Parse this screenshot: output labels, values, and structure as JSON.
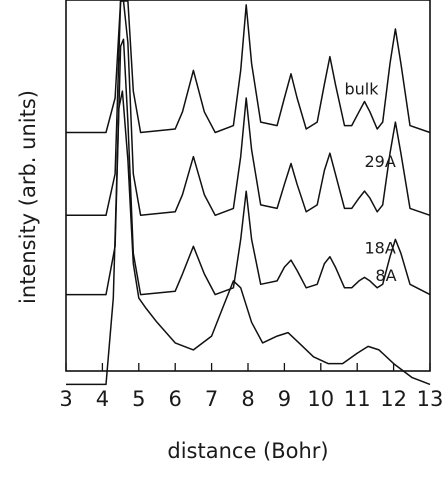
{
  "chart_data": {
    "type": "line",
    "title": "",
    "xlabel": "distance (Bohr)",
    "ylabel": "intensity (arb. units)",
    "xlim": [
      3,
      13
    ],
    "x_ticks": [
      "3",
      "4",
      "5",
      "6",
      "7",
      "8",
      "9",
      "10",
      "11",
      "12",
      "13"
    ],
    "y_ticks": [],
    "grid": false,
    "legend": "none",
    "series_offsets": {
      "bulk": 0.5,
      "29A": 0.26,
      "18A": 0.03,
      "8A": -0.23
    },
    "series": [
      {
        "name": "bulk",
        "label_position": [
          10.65,
          0.11
        ],
        "points": [
          [
            3,
            0
          ],
          [
            4.1,
            0
          ],
          [
            4.35,
            0.1
          ],
          [
            4.5,
            0.62
          ],
          [
            4.58,
            0.7
          ],
          [
            4.7,
            0.5
          ],
          [
            4.85,
            0.12
          ],
          [
            5.05,
            0
          ],
          [
            6.0,
            0.01
          ],
          [
            6.2,
            0.06
          ],
          [
            6.5,
            0.18
          ],
          [
            6.8,
            0.06
          ],
          [
            7.1,
            0
          ],
          [
            7.6,
            0.02
          ],
          [
            7.8,
            0.18
          ],
          [
            7.95,
            0.37
          ],
          [
            8.1,
            0.2
          ],
          [
            8.35,
            0.03
          ],
          [
            8.8,
            0.02
          ],
          [
            9.0,
            0.1
          ],
          [
            9.18,
            0.17
          ],
          [
            9.35,
            0.1
          ],
          [
            9.6,
            0.01
          ],
          [
            9.9,
            0.03
          ],
          [
            10.1,
            0.14
          ],
          [
            10.25,
            0.22
          ],
          [
            10.4,
            0.14
          ],
          [
            10.65,
            0.02
          ],
          [
            10.85,
            0.02
          ],
          [
            11.05,
            0.06
          ],
          [
            11.2,
            0.09
          ],
          [
            11.35,
            0.06
          ],
          [
            11.55,
            0.01
          ],
          [
            11.7,
            0.03
          ],
          [
            11.9,
            0.2
          ],
          [
            12.05,
            0.3
          ],
          [
            12.2,
            0.2
          ],
          [
            12.45,
            0.02
          ],
          [
            13,
            0
          ]
        ]
      },
      {
        "name": "29A",
        "label_position": [
          11.2,
          0.14
        ],
        "points": [
          [
            3,
            0
          ],
          [
            4.1,
            0
          ],
          [
            4.35,
            0.12
          ],
          [
            4.5,
            0.66
          ],
          [
            4.58,
            0.7
          ],
          [
            4.7,
            0.5
          ],
          [
            4.85,
            0.12
          ],
          [
            5.05,
            0
          ],
          [
            6.0,
            0.01
          ],
          [
            6.2,
            0.06
          ],
          [
            6.5,
            0.17
          ],
          [
            6.8,
            0.06
          ],
          [
            7.1,
            0
          ],
          [
            7.6,
            0.02
          ],
          [
            7.8,
            0.17
          ],
          [
            7.95,
            0.34
          ],
          [
            8.1,
            0.19
          ],
          [
            8.35,
            0.03
          ],
          [
            8.8,
            0.02
          ],
          [
            9.0,
            0.09
          ],
          [
            9.18,
            0.15
          ],
          [
            9.35,
            0.09
          ],
          [
            9.6,
            0.01
          ],
          [
            9.9,
            0.03
          ],
          [
            10.1,
            0.13
          ],
          [
            10.25,
            0.18
          ],
          [
            10.4,
            0.12
          ],
          [
            10.65,
            0.02
          ],
          [
            10.85,
            0.02
          ],
          [
            11.05,
            0.05
          ],
          [
            11.2,
            0.07
          ],
          [
            11.35,
            0.05
          ],
          [
            11.55,
            0.01
          ],
          [
            11.7,
            0.03
          ],
          [
            11.9,
            0.18
          ],
          [
            12.05,
            0.27
          ],
          [
            12.2,
            0.18
          ],
          [
            12.45,
            0.02
          ],
          [
            13,
            0
          ]
        ]
      },
      {
        "name": "18A",
        "label_position": [
          11.2,
          0.12
        ],
        "points": [
          [
            3,
            0
          ],
          [
            4.1,
            0
          ],
          [
            4.35,
            0.14
          ],
          [
            4.5,
            0.72
          ],
          [
            4.58,
            0.74
          ],
          [
            4.7,
            0.5
          ],
          [
            4.85,
            0.12
          ],
          [
            5.05,
            0
          ],
          [
            6.0,
            0.01
          ],
          [
            6.2,
            0.06
          ],
          [
            6.5,
            0.14
          ],
          [
            6.8,
            0.06
          ],
          [
            7.1,
            0
          ],
          [
            7.6,
            0.02
          ],
          [
            7.8,
            0.16
          ],
          [
            7.95,
            0.3
          ],
          [
            8.1,
            0.16
          ],
          [
            8.35,
            0.03
          ],
          [
            8.8,
            0.04
          ],
          [
            9.0,
            0.08
          ],
          [
            9.18,
            0.1
          ],
          [
            9.35,
            0.07
          ],
          [
            9.6,
            0.02
          ],
          [
            9.9,
            0.03
          ],
          [
            10.1,
            0.09
          ],
          [
            10.25,
            0.11
          ],
          [
            10.4,
            0.08
          ],
          [
            10.65,
            0.02
          ],
          [
            10.85,
            0.02
          ],
          [
            11.05,
            0.04
          ],
          [
            11.2,
            0.05
          ],
          [
            11.35,
            0.04
          ],
          [
            11.55,
            0.02
          ],
          [
            11.7,
            0.03
          ],
          [
            11.9,
            0.11
          ],
          [
            12.05,
            0.16
          ],
          [
            12.2,
            0.12
          ],
          [
            12.45,
            0.03
          ],
          [
            13,
            0
          ]
        ]
      },
      {
        "name": "8A",
        "label_position": [
          11.5,
          0.3
        ],
        "points": [
          [
            3,
            0
          ],
          [
            4.1,
            0
          ],
          [
            4.3,
            0.25
          ],
          [
            4.45,
            0.8
          ],
          [
            4.55,
            0.85
          ],
          [
            4.7,
            0.65
          ],
          [
            4.85,
            0.35
          ],
          [
            5.0,
            0.25
          ],
          [
            5.2,
            0.22
          ],
          [
            5.5,
            0.18
          ],
          [
            6.0,
            0.12
          ],
          [
            6.5,
            0.1
          ],
          [
            7.0,
            0.14
          ],
          [
            7.3,
            0.22
          ],
          [
            7.6,
            0.3
          ],
          [
            7.8,
            0.28
          ],
          [
            8.1,
            0.18
          ],
          [
            8.4,
            0.12
          ],
          [
            8.8,
            0.14
          ],
          [
            9.1,
            0.15
          ],
          [
            9.4,
            0.12
          ],
          [
            9.8,
            0.08
          ],
          [
            10.2,
            0.06
          ],
          [
            10.6,
            0.06
          ],
          [
            11.0,
            0.09
          ],
          [
            11.3,
            0.11
          ],
          [
            11.6,
            0.1
          ],
          [
            12.0,
            0.06
          ],
          [
            12.5,
            0.02
          ],
          [
            13,
            0.0
          ]
        ]
      }
    ]
  }
}
